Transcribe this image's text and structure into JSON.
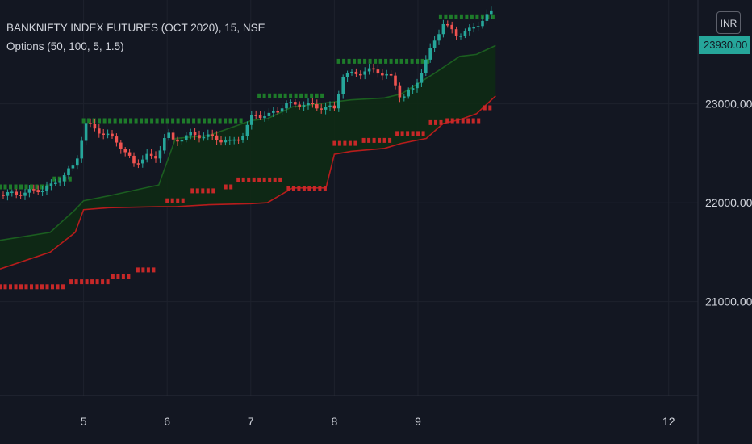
{
  "header": {
    "title": "BANKNIFTY INDEX FUTURES (OCT 2020), 15, NSE",
    "subtitle": "Options (50, 100, 5, 1.5)"
  },
  "currency_button": "INR",
  "last_price_label": "23930.00",
  "colors": {
    "background": "#131722",
    "grid": "#1e222d",
    "text": "#d1d4dc",
    "up": "#26a69a",
    "down": "#ef5350",
    "upper_band": "#1b5e20",
    "lower_band": "#b71c1c",
    "band_fill": "#0e2a14",
    "upper_dots": "#1e7b2a",
    "lower_dots": "#c62828"
  },
  "chart_data": {
    "type": "line",
    "title": "BANKNIFTY INDEX FUTURES (OCT 2020), 15, NSE",
    "indicator": "Options (50, 100, 5, 1.5)",
    "x_ticks": [
      "5",
      "6",
      "7",
      "8",
      "9",
      "12"
    ],
    "y_ticks": [
      21000,
      22000,
      23000
    ],
    "y_tick_labels": [
      "21000.00",
      "22000.00",
      "23000.00"
    ],
    "ylim": [
      20050,
      24050
    ],
    "xlim": [
      4.0,
      12.35
    ],
    "grid": true,
    "price_series": {
      "name": "Close",
      "x": [
        4.0,
        4.3,
        4.6,
        4.9,
        5.02,
        5.2,
        5.4,
        5.6,
        5.75,
        5.85,
        6.0,
        6.05,
        6.3,
        6.55,
        6.75,
        6.9,
        7.0,
        7.02,
        7.2,
        7.4,
        7.6,
        7.8,
        8.0,
        8.1,
        8.3,
        8.5,
        8.7,
        8.8,
        8.95,
        9.05,
        9.2,
        9.3,
        9.45,
        9.65,
        9.8,
        9.92
      ],
      "y": [
        22080,
        22100,
        22160,
        22380,
        22800,
        22720,
        22620,
        22390,
        22480,
        22430,
        22720,
        22620,
        22690,
        22660,
        22610,
        22680,
        22830,
        22900,
        22870,
        22990,
        23000,
        22970,
        22950,
        23280,
        23320,
        23340,
        23250,
        23060,
        23150,
        23350,
        23640,
        23820,
        23700,
        23750,
        23880,
        23930
      ]
    },
    "series": [
      {
        "x": [
          4.0,
          4.6,
          4.9,
          5.0,
          5.3,
          5.9,
          6.1,
          6.5,
          7.0,
          7.2,
          7.5,
          8.0,
          8.2,
          8.6,
          8.8,
          9.2,
          9.5,
          9.7,
          9.93
        ],
        "y": [
          21620,
          21700,
          21930,
          22020,
          22070,
          22180,
          22650,
          22680,
          22830,
          22850,
          22970,
          23020,
          23040,
          23060,
          23100,
          23310,
          23480,
          23500,
          23590
        ]
      },
      {
        "x": [
          4.0,
          4.6,
          4.9,
          5.0,
          5.3,
          5.9,
          6.1,
          6.5,
          7.0,
          7.2,
          7.5,
          7.9,
          8.0,
          8.2,
          8.6,
          8.8,
          9.1,
          9.3,
          9.5,
          9.7,
          9.93
        ],
        "y": [
          21330,
          21500,
          21700,
          21930,
          21950,
          21960,
          21960,
          21980,
          21990,
          22000,
          22150,
          22150,
          22490,
          22520,
          22550,
          22600,
          22650,
          22800,
          22840,
          22900,
          23080
        ]
      },
      {
        "x_ranges": [
          [
            4.0,
            4.6
          ],
          [
            4.65,
            4.9
          ],
          [
            5.0,
            6.9
          ],
          [
            7.1,
            7.9
          ],
          [
            8.05,
            9.15
          ],
          [
            9.27,
            9.93
          ]
        ],
        "y": [
          22160,
          22240,
          22830,
          23080,
          23430,
          23880
        ]
      },
      {
        "x_ranges": [
          [
            4.0,
            4.8
          ],
          [
            4.85,
            5.3
          ],
          [
            5.35,
            5.6
          ],
          [
            5.65,
            5.9
          ],
          [
            6.0,
            6.2
          ],
          [
            6.3,
            6.6
          ],
          [
            6.7,
            6.8
          ],
          [
            6.85,
            7.4
          ],
          [
            7.45,
            7.95
          ],
          [
            8.0,
            8.3
          ],
          [
            8.35,
            8.7
          ],
          [
            8.75,
            9.1
          ],
          [
            9.15,
            9.3
          ],
          [
            9.35,
            9.75
          ],
          [
            9.8,
            9.92
          ]
        ],
        "y": [
          21150,
          21200,
          21250,
          21320,
          22020,
          22120,
          22160,
          22230,
          22140,
          22600,
          22630,
          22700,
          22810,
          22830,
          22960
        ]
      }
    ]
  }
}
